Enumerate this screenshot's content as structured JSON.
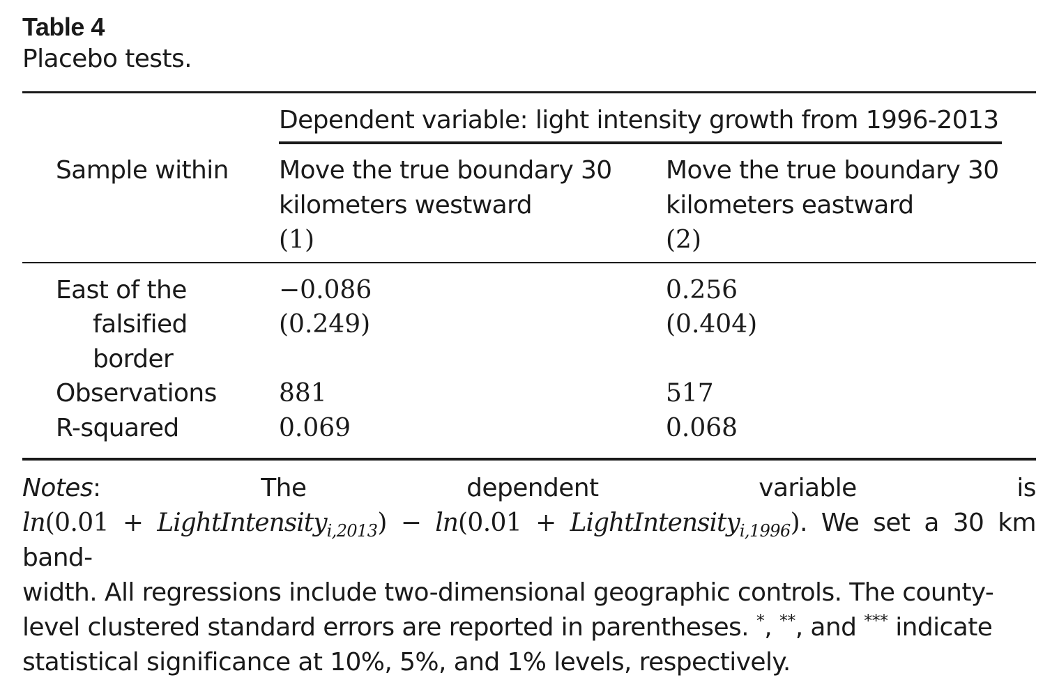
{
  "caption": {
    "label": "Table 4",
    "title": "Placebo tests."
  },
  "table": {
    "dependent_header": "Dependent variable: light intensity growth from 1996-2013",
    "stub_header": "Sample within",
    "columns": [
      {
        "line1": "Move the true boundary 30",
        "line2": "kilometers westward",
        "number": "(1)"
      },
      {
        "line1": "Move the true boundary 30",
        "line2": "kilometers eastward",
        "number": "(2)"
      }
    ],
    "rows": [
      {
        "label_lines": [
          "East of the",
          "falsified",
          "border"
        ],
        "values": [
          "−0.086",
          "0.256"
        ],
        "se": [
          "(0.249)",
          "(0.404)"
        ]
      },
      {
        "label_lines": [
          "Observations"
        ],
        "values": [
          "881",
          "517"
        ]
      },
      {
        "label_lines": [
          "R-squared"
        ],
        "values": [
          "0.069",
          "0.068"
        ]
      }
    ]
  },
  "notes": {
    "label": "Notes",
    "w1": "The",
    "w2": "dependent",
    "w3": "variable",
    "w4": "is",
    "ln": "ln",
    "open1": "(0.01 + ",
    "var": "LightIntensity",
    "sub1": "i,2013",
    "close1": ")",
    "minus": " − ",
    "open2": "(0.01 + ",
    "sub2": "i,1996",
    "close2": ")",
    "after_formula": ". We set a 30 km band-",
    "line3": "width. All regressions include two-dimensional geographic controls. The county-",
    "line4_a": "level clustered standard errors are reported in parentheses. ",
    "star1": "*",
    "comma1": ", ",
    "star2": "**",
    "comma2": ", and ",
    "star3": "***",
    "line4_b": " indicate",
    "line5": "statistical significance at 10%, 5%, and 1% levels, respectively."
  }
}
